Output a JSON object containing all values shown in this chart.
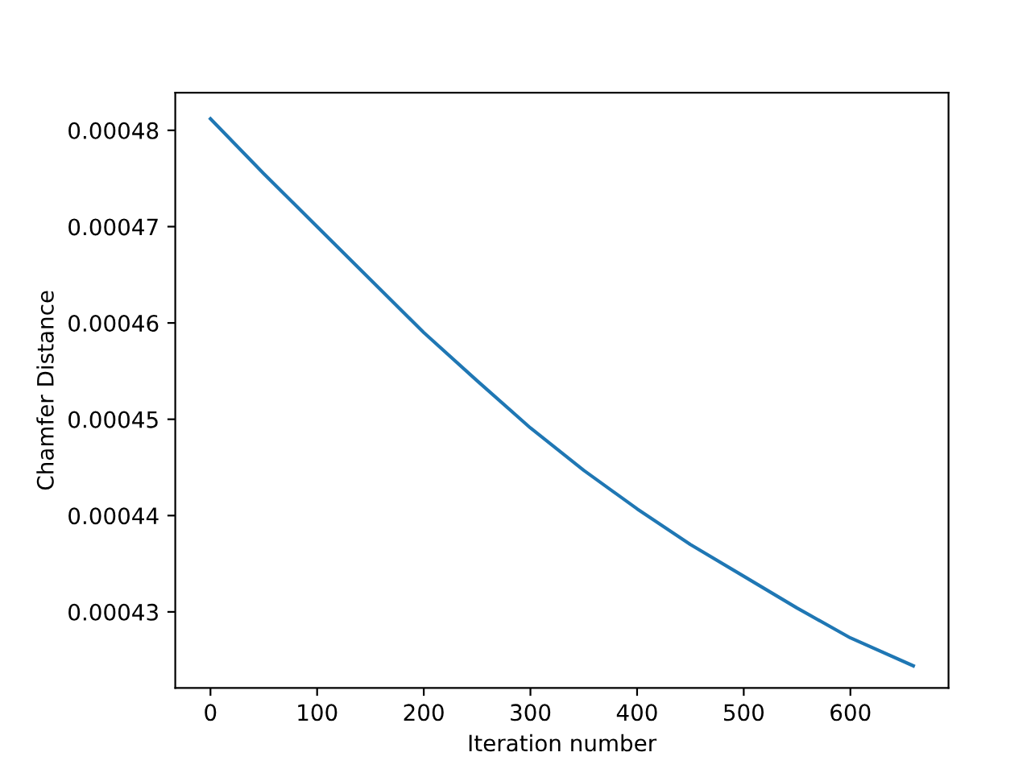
{
  "chart_data": {
    "type": "line",
    "xlabel": "Iteration number",
    "ylabel": "Chamfer Distance",
    "x": [
      0,
      50,
      100,
      150,
      200,
      250,
      300,
      350,
      400,
      450,
      500,
      550,
      600,
      659
    ],
    "series": [
      {
        "color": "#1f77b4",
        "values": [
          0.0004812,
          0.0004755,
          0.00047,
          0.0004645,
          0.000459,
          0.000454,
          0.0004491,
          0.0004447,
          0.0004407,
          0.000437,
          0.0004337,
          0.0004304,
          0.0004273,
          0.0004244
        ]
      }
    ],
    "xlim": [
      -33,
      692
    ],
    "ylim": [
      0.0004221,
      0.0004839
    ],
    "xticks": [
      0,
      100,
      200,
      300,
      400,
      500,
      600
    ],
    "yticks": [
      0.00043,
      0.00044,
      0.00045,
      0.00046,
      0.00047,
      0.00048
    ],
    "grid": false,
    "legend": false
  }
}
